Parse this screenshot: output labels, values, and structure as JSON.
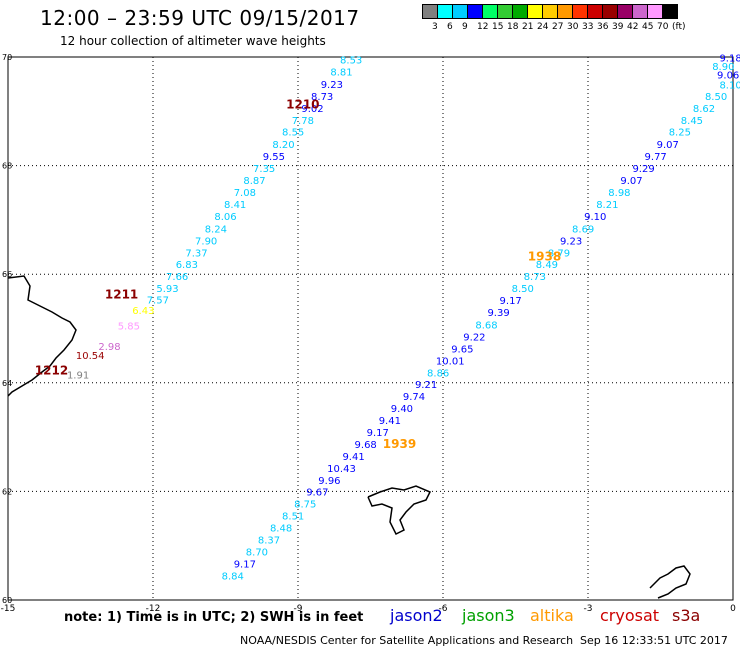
{
  "header": {
    "title": "12:00 – 23:59 UTC 09/15/2017",
    "subtitle": "12 hour collection of altimeter wave heights"
  },
  "legend": {
    "colors": [
      "#808080",
      "#00ffff",
      "#00ccff",
      "#0000ff",
      "#00ff66",
      "#33cc33",
      "#00aa00",
      "#ffff00",
      "#ffcc00",
      "#ff9900",
      "#ff3300",
      "#cc0000",
      "#990000",
      "#990066",
      "#cc66cc",
      "#ff99ff",
      "#000000"
    ],
    "labels": [
      "3",
      "6",
      "9",
      "12",
      "15",
      "18",
      "21",
      "24",
      "27",
      "30",
      "33",
      "36",
      "39",
      "42",
      "45",
      "70",
      "(ft)"
    ]
  },
  "axes": {
    "x_ticks": [
      "-15",
      "-12",
      "-9",
      "-6",
      "-3",
      "0"
    ],
    "y_ticks": [
      "60",
      "62",
      "64",
      "66",
      "68",
      "70"
    ],
    "lon_range": [
      -15,
      0
    ],
    "lat_range": [
      60,
      70
    ]
  },
  "track_labels": [
    {
      "text": "1210",
      "lon": -8.9,
      "lat": 69.05,
      "color": "#8b0000"
    },
    {
      "text": "1211",
      "lon": -12.65,
      "lat": 65.55,
      "color": "#8b0000"
    },
    {
      "text": "1212",
      "lon": -14.1,
      "lat": 64.15,
      "color": "#8b0000"
    },
    {
      "text": "1938",
      "lon": -3.9,
      "lat": 66.25,
      "color": "#ff9900"
    },
    {
      "text": "1939",
      "lon": -6.9,
      "lat": 62.8,
      "color": "#ff9900"
    }
  ],
  "tracks": [
    {
      "name": "pass-1210",
      "points": [
        {
          "lon": -7.9,
          "lat": 69.88,
          "v": "8.53",
          "c": "#00ccff"
        },
        {
          "lon": -8.1,
          "lat": 69.66,
          "v": "8.81",
          "c": "#00ccff"
        },
        {
          "lon": -8.3,
          "lat": 69.43,
          "v": "9.23",
          "c": "#0000ff"
        },
        {
          "lon": -8.5,
          "lat": 69.21,
          "v": "8.73",
          "c": "#0000ff"
        },
        {
          "lon": -8.7,
          "lat": 68.99,
          "v": "9.02",
          "c": "#0000ff"
        },
        {
          "lon": -8.9,
          "lat": 68.77,
          "v": "7.78",
          "c": "#00ccff"
        },
        {
          "lon": -9.1,
          "lat": 68.55,
          "v": "8.55",
          "c": "#00ccff"
        },
        {
          "lon": -9.3,
          "lat": 68.32,
          "v": "8.20",
          "c": "#00ccff"
        },
        {
          "lon": -9.5,
          "lat": 68.1,
          "v": "9.55",
          "c": "#0000ff"
        },
        {
          "lon": -9.7,
          "lat": 67.88,
          "v": "7.35",
          "c": "#00ccff"
        },
        {
          "lon": -9.9,
          "lat": 67.66,
          "v": "8.87",
          "c": "#00ccff"
        },
        {
          "lon": -10.1,
          "lat": 67.44,
          "v": "7.08",
          "c": "#00ccff"
        },
        {
          "lon": -10.3,
          "lat": 67.22,
          "v": "8.41",
          "c": "#00ccff"
        },
        {
          "lon": -10.5,
          "lat": 67.0,
          "v": "8.06",
          "c": "#00ccff"
        },
        {
          "lon": -10.7,
          "lat": 66.77,
          "v": "8.24",
          "c": "#00ccff"
        },
        {
          "lon": -10.9,
          "lat": 66.55,
          "v": "7.90",
          "c": "#00ccff"
        },
        {
          "lon": -11.1,
          "lat": 66.33,
          "v": "7.37",
          "c": "#00ccff"
        },
        {
          "lon": -11.3,
          "lat": 66.11,
          "v": "6.83",
          "c": "#00ccff"
        },
        {
          "lon": -11.5,
          "lat": 65.89,
          "v": "7.66",
          "c": "#00ccff"
        },
        {
          "lon": -11.7,
          "lat": 65.67,
          "v": "5.93",
          "c": "#00ccff"
        },
        {
          "lon": -11.9,
          "lat": 65.46,
          "v": "7.57",
          "c": "#00ccff"
        },
        {
          "lon": -12.2,
          "lat": 65.27,
          "v": "6.43",
          "c": "#ffff00"
        },
        {
          "lon": -12.5,
          "lat": 64.98,
          "v": "5.85",
          "c": "#ff99ff"
        },
        {
          "lon": -12.9,
          "lat": 64.6,
          "v": "2.98",
          "c": "#cc66cc"
        },
        {
          "lon": -13.3,
          "lat": 64.44,
          "v": "10.54",
          "c": "#990000"
        },
        {
          "lon": -13.55,
          "lat": 64.08,
          "v": "1.91",
          "c": "#808080"
        }
      ]
    },
    {
      "name": "pass-1938",
      "points": [
        {
          "lon": -0.05,
          "lat": 69.92,
          "v": "9.18",
          "c": "#0000ff"
        },
        {
          "lon": -0.2,
          "lat": 69.76,
          "v": "8.90",
          "c": "#00ccff"
        },
        {
          "lon": -0.1,
          "lat": 69.6,
          "v": "9.06",
          "c": "#0000ff"
        },
        {
          "lon": -0.05,
          "lat": 69.42,
          "v": "8.10",
          "c": "#00ccff"
        },
        {
          "lon": -0.35,
          "lat": 69.21,
          "v": "8.50",
          "c": "#00ccff"
        },
        {
          "lon": -0.6,
          "lat": 68.99,
          "v": "8.62",
          "c": "#00ccff"
        },
        {
          "lon": -0.85,
          "lat": 68.77,
          "v": "8.45",
          "c": "#00ccff"
        },
        {
          "lon": -1.1,
          "lat": 68.55,
          "v": "8.25",
          "c": "#00ccff"
        },
        {
          "lon": -1.35,
          "lat": 68.32,
          "v": "9.07",
          "c": "#0000ff"
        },
        {
          "lon": -1.6,
          "lat": 68.1,
          "v": "9.77",
          "c": "#0000ff"
        },
        {
          "lon": -1.85,
          "lat": 67.88,
          "v": "9.29",
          "c": "#0000ff"
        },
        {
          "lon": -2.1,
          "lat": 67.66,
          "v": "9.07",
          "c": "#0000ff"
        },
        {
          "lon": -2.35,
          "lat": 67.44,
          "v": "8.98",
          "c": "#00ccff"
        },
        {
          "lon": -2.6,
          "lat": 67.22,
          "v": "8.21",
          "c": "#00ccff"
        },
        {
          "lon": -2.85,
          "lat": 67.0,
          "v": "9.10",
          "c": "#0000ff"
        },
        {
          "lon": -3.1,
          "lat": 66.77,
          "v": "8.69",
          "c": "#00ccff"
        },
        {
          "lon": -3.35,
          "lat": 66.55,
          "v": "9.23",
          "c": "#0000ff"
        },
        {
          "lon": -3.6,
          "lat": 66.33,
          "v": "8.79",
          "c": "#00ccff"
        },
        {
          "lon": -3.85,
          "lat": 66.11,
          "v": "8.49",
          "c": "#00ccff"
        },
        {
          "lon": -4.1,
          "lat": 65.89,
          "v": "8.73",
          "c": "#00ccff"
        },
        {
          "lon": -4.35,
          "lat": 65.67,
          "v": "8.50",
          "c": "#00ccff"
        },
        {
          "lon": -4.6,
          "lat": 65.45,
          "v": "9.17",
          "c": "#0000ff"
        },
        {
          "lon": -4.85,
          "lat": 65.23,
          "v": "9.39",
          "c": "#0000ff"
        },
        {
          "lon": -5.1,
          "lat": 65.0,
          "v": "8.68",
          "c": "#00ccff"
        },
        {
          "lon": -5.35,
          "lat": 64.78,
          "v": "9.22",
          "c": "#0000ff"
        },
        {
          "lon": -5.6,
          "lat": 64.56,
          "v": "9.65",
          "c": "#0000ff"
        },
        {
          "lon": -5.85,
          "lat": 64.34,
          "v": "10.01",
          "c": "#0000ff"
        },
        {
          "lon": -6.1,
          "lat": 64.12,
          "v": "8.86",
          "c": "#00ccff"
        },
        {
          "lon": -6.35,
          "lat": 63.9,
          "v": "9.21",
          "c": "#0000ff"
        },
        {
          "lon": -6.6,
          "lat": 63.68,
          "v": "9.74",
          "c": "#0000ff"
        },
        {
          "lon": -6.85,
          "lat": 63.46,
          "v": "9.40",
          "c": "#0000ff"
        },
        {
          "lon": -7.1,
          "lat": 63.24,
          "v": "9.41",
          "c": "#0000ff"
        },
        {
          "lon": -7.35,
          "lat": 63.02,
          "v": "9.17",
          "c": "#0000ff"
        },
        {
          "lon": -7.6,
          "lat": 62.8,
          "v": "9.68",
          "c": "#0000ff"
        },
        {
          "lon": -7.85,
          "lat": 62.58,
          "v": "9.41",
          "c": "#0000ff"
        },
        {
          "lon": -8.1,
          "lat": 62.36,
          "v": "10.43",
          "c": "#0000ff"
        },
        {
          "lon": -8.35,
          "lat": 62.14,
          "v": "9.96",
          "c": "#0000ff"
        },
        {
          "lon": -8.6,
          "lat": 61.92,
          "v": "9.67",
          "c": "#0000ff"
        },
        {
          "lon": -8.85,
          "lat": 61.7,
          "v": "8.75",
          "c": "#00ccff"
        },
        {
          "lon": -9.1,
          "lat": 61.48,
          "v": "8.51",
          "c": "#00ccff"
        },
        {
          "lon": -9.35,
          "lat": 61.26,
          "v": "8.48",
          "c": "#00ccff"
        },
        {
          "lon": -9.6,
          "lat": 61.04,
          "v": "8.37",
          "c": "#00ccff"
        },
        {
          "lon": -9.85,
          "lat": 60.82,
          "v": "8.70",
          "c": "#00ccff"
        },
        {
          "lon": -10.1,
          "lat": 60.6,
          "v": "9.17",
          "c": "#0000ff"
        },
        {
          "lon": -10.35,
          "lat": 60.38,
          "v": "8.84",
          "c": "#00ccff"
        }
      ]
    }
  ],
  "footer": {
    "note": "note: 1) Time is in UTC; 2) SWH is in feet",
    "satellites": [
      {
        "name": "jason2",
        "color": "#0000cc"
      },
      {
        "name": "jason3",
        "color": "#00a000"
      },
      {
        "name": "altika",
        "color": "#ff9900"
      },
      {
        "name": "cryosat",
        "color": "#cc0000"
      },
      {
        "name": "s3a",
        "color": "#8b0000"
      }
    ],
    "credit": "NOAA/NESDIS Center for Satellite Applications and Research",
    "timestamp": "Sep 16 12:33:51 UTC 2017"
  }
}
